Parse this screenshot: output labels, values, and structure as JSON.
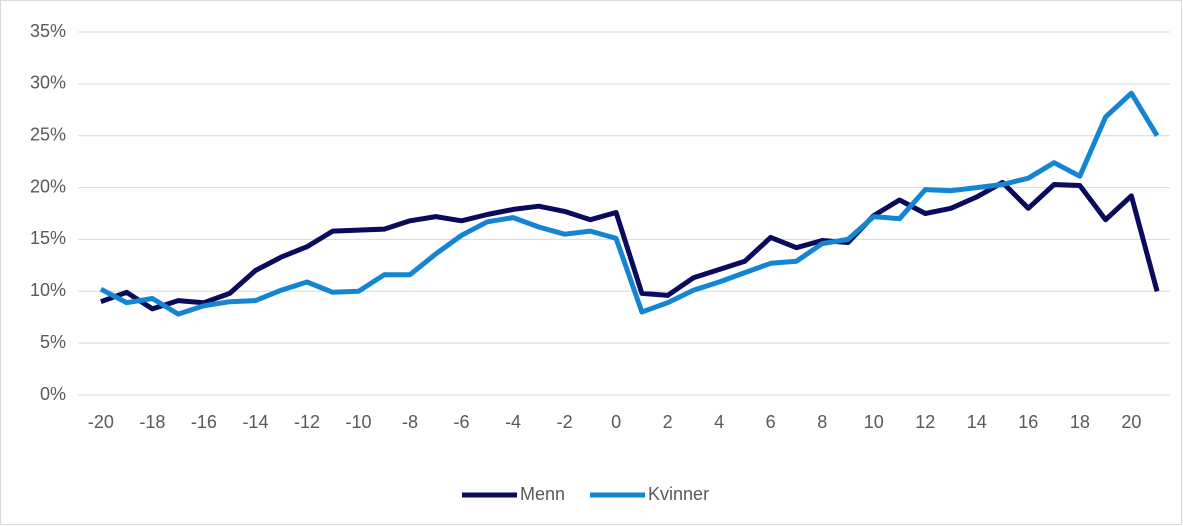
{
  "chart_data": {
    "type": "line",
    "categories": [
      "-20",
      null,
      "-18",
      null,
      "-16",
      null,
      "-14",
      null,
      "-12",
      null,
      "-10",
      null,
      "-8",
      null,
      "-6",
      null,
      "-4",
      null,
      "-2",
      null,
      "0",
      null,
      "2",
      null,
      "4",
      null,
      "6",
      null,
      "8",
      null,
      "10",
      null,
      "12",
      null,
      "14",
      null,
      "16",
      null,
      "18",
      null,
      "20",
      null
    ],
    "series": [
      {
        "name": "Menn",
        "color": "#0b0b5e",
        "values": [
          9.0,
          9.9,
          8.3,
          9.1,
          8.9,
          9.8,
          12.0,
          13.3,
          14.3,
          15.8,
          15.9,
          16.0,
          16.8,
          17.2,
          16.8,
          17.4,
          17.9,
          18.2,
          17.7,
          16.9,
          17.6,
          9.8,
          9.6,
          11.3,
          12.1,
          12.9,
          15.2,
          14.2,
          14.9,
          14.7,
          17.3,
          18.8,
          17.5,
          18.0,
          19.1,
          20.5,
          18.0,
          20.3,
          20.2,
          16.9,
          19.2,
          10.0
        ]
      },
      {
        "name": "Kvinner",
        "color": "#1385d3",
        "values": [
          10.2,
          8.9,
          9.3,
          7.8,
          8.6,
          9.0,
          9.1,
          10.1,
          10.9,
          9.9,
          10.0,
          11.6,
          11.6,
          13.6,
          15.4,
          16.7,
          17.1,
          16.2,
          15.5,
          15.8,
          15.1,
          8.0,
          8.9,
          10.1,
          10.9,
          11.8,
          12.7,
          12.9,
          14.6,
          15.0,
          17.2,
          17.0,
          19.8,
          19.7,
          20.0,
          20.3,
          20.9,
          22.4,
          21.1,
          26.8,
          29.1,
          25.0
        ]
      }
    ],
    "ylim": [
      0,
      35
    ],
    "yticks": [
      {
        "value": 0,
        "label": "0%"
      },
      {
        "value": 5,
        "label": "5%"
      },
      {
        "value": 10,
        "label": "10%"
      },
      {
        "value": 15,
        "label": "15%"
      },
      {
        "value": 20,
        "label": "20%"
      },
      {
        "value": 25,
        "label": "25%"
      },
      {
        "value": 30,
        "label": "30%"
      },
      {
        "value": 35,
        "label": "35%"
      }
    ],
    "grid": true,
    "legend": "bottom"
  }
}
